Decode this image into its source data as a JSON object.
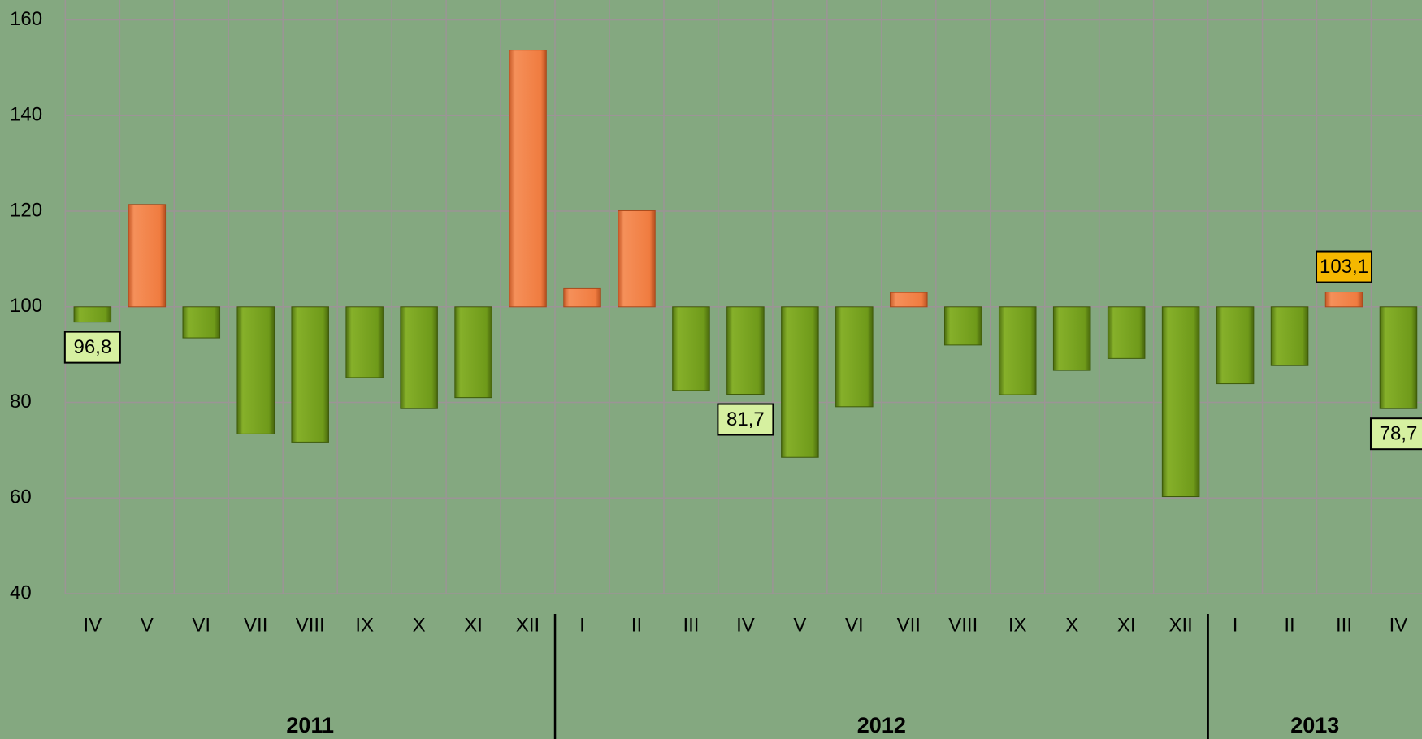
{
  "chart_data": {
    "type": "bar",
    "baseline": 100,
    "ylim": [
      40,
      160
    ],
    "yticks": [
      40,
      60,
      80,
      100,
      120,
      140,
      160
    ],
    "grid": true,
    "color_above": "#f07c40",
    "color_below": "#6f9a1a",
    "label_color_above": "#f5b800",
    "label_color_below": "#d6f0a0",
    "groups": [
      {
        "label": "2011",
        "categories": [
          "IV",
          "V",
          "VI",
          "VII",
          "VIII",
          "IX",
          "X",
          "XI",
          "XII"
        ],
        "values": [
          96.8,
          121.4,
          93.5,
          73.4,
          71.7,
          85.2,
          78.7,
          81.0,
          153.7
        ],
        "value_labels": [
          "96,8",
          null,
          null,
          null,
          null,
          null,
          null,
          null,
          null
        ]
      },
      {
        "label": "2012",
        "categories": [
          "I",
          "II",
          "III",
          "IV",
          "V",
          "VI",
          "VII",
          "VIII",
          "IX",
          "X",
          "XI",
          "XII"
        ],
        "values": [
          103.8,
          120.1,
          82.5,
          81.7,
          68.5,
          79.1,
          103.0,
          92.0,
          81.6,
          86.7,
          89.2,
          60.3
        ],
        "value_labels": [
          null,
          null,
          null,
          "81,7",
          null,
          null,
          null,
          null,
          null,
          null,
          null,
          null
        ]
      },
      {
        "label": "2013",
        "categories": [
          "I",
          "II",
          "III",
          "IV"
        ],
        "values": [
          83.9,
          87.7,
          103.1,
          78.7
        ],
        "value_labels": [
          null,
          null,
          "103,1",
          "78,7"
        ]
      }
    ]
  }
}
